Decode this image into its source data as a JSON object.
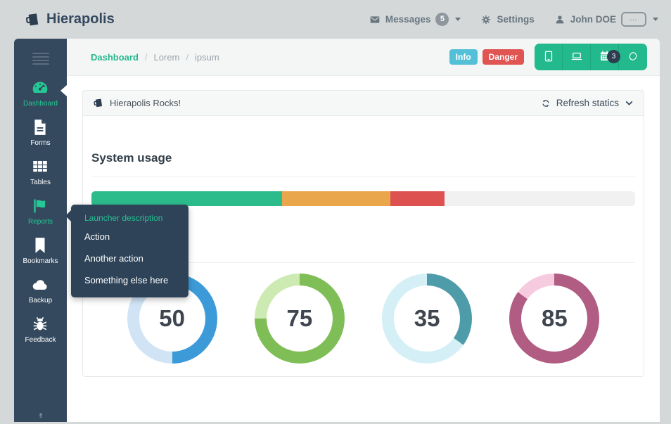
{
  "header": {
    "brand": "Hierapolis",
    "messages_label": "Messages",
    "messages_count": "5",
    "settings_label": "Settings",
    "user_name": "John DOE",
    "avatar_text": "..."
  },
  "sidebar": {
    "items": [
      {
        "label": "Dashboard",
        "icon": "gauge-icon",
        "active": true
      },
      {
        "label": "Forms",
        "icon": "document-icon",
        "active": false
      },
      {
        "label": "Tables",
        "icon": "table-icon",
        "active": false
      },
      {
        "label": "Reports",
        "icon": "flag-icon",
        "active": true
      },
      {
        "label": "Bookmarks",
        "icon": "bookmark-icon",
        "active": false
      },
      {
        "label": "Backup",
        "icon": "cloud-icon",
        "active": false
      },
      {
        "label": "Feedback",
        "icon": "bug-icon",
        "active": false
      }
    ]
  },
  "breadcrumb": {
    "items": [
      "Dashboard",
      "Lorem",
      "ipsum"
    ]
  },
  "toolbar": {
    "info_label": "Info",
    "danger_label": "Danger",
    "buttons": [
      {
        "icon": "tablet-icon"
      },
      {
        "icon": "laptop-icon"
      },
      {
        "icon": "calendar-icon",
        "badge": "3"
      },
      {
        "icon": "comment-icon"
      }
    ]
  },
  "panel": {
    "title": "Hierapolis Rocks!",
    "refresh_label": "Refresh statics",
    "section_title": "System usage"
  },
  "dropdown": {
    "header": "Launcher description",
    "items": [
      "Action",
      "Another action",
      "Something else here"
    ]
  },
  "chart_data": [
    {
      "type": "bar",
      "title": "System usage",
      "orientation": "horizontal-stacked",
      "max": 100,
      "track_color": "#f1f1f1",
      "segments": [
        {
          "label": "green",
          "value": 35,
          "color": "#2cbc8c"
        },
        {
          "label": "orange",
          "value": 20,
          "color": "#eaa64a"
        },
        {
          "label": "red",
          "value": 10,
          "color": "#dd5250"
        }
      ]
    },
    {
      "type": "pie",
      "subtype": "donut-gauges",
      "items": [
        {
          "value": 50,
          "color": "#3d9ad8",
          "track": "#d0e4f6"
        },
        {
          "value": 75,
          "color": "#7fbe57",
          "track": "#cdeab2"
        },
        {
          "value": 35,
          "color": "#4e9ba9",
          "track": "#d4f0f6"
        },
        {
          "value": 85,
          "color": "#b15c83",
          "track": "#f7cbdf"
        }
      ]
    }
  ],
  "colors": {
    "accent": "#22b98c",
    "sidebar": "#34495e",
    "info": "#54c0d8",
    "danger": "#e05452",
    "page_bg": "#d4d8d9"
  }
}
